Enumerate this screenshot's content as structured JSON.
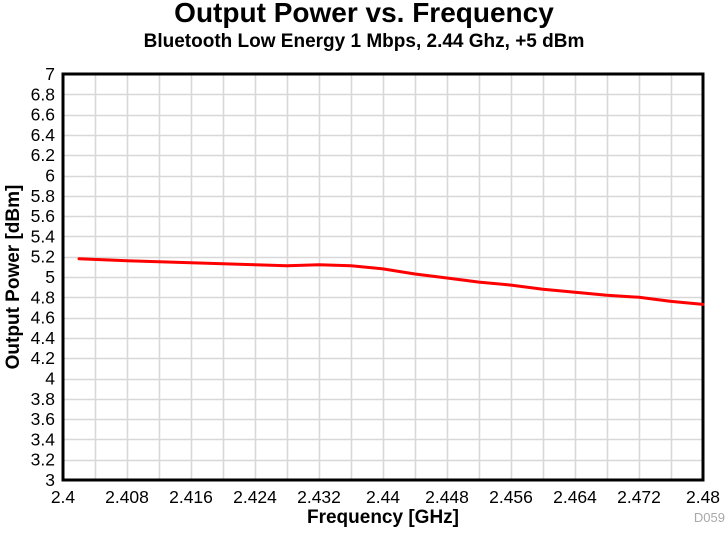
{
  "chart_data": {
    "type": "line",
    "title": "Output Power vs. Frequency",
    "subtitle": "Bluetooth Low Energy 1 Mbps, 2.44 Ghz, +5 dBm",
    "xlabel": "Frequency [GHz]",
    "ylabel": "Output Power [dBm]",
    "xlim": [
      2.4,
      2.48
    ],
    "ylim": [
      3,
      7
    ],
    "x_tick_step": 0.008,
    "x_grid_step": 0.004,
    "y_tick_step": 0.2,
    "y_grid_step": 0.2,
    "grid": true,
    "legend": null,
    "x_ticks": [
      "2.4",
      "2.408",
      "2.416",
      "2.424",
      "2.432",
      "2.44",
      "2.448",
      "2.456",
      "2.464",
      "2.472",
      "2.48"
    ],
    "y_ticks": [
      "7",
      "6.8",
      "6.6",
      "6.4",
      "6.2",
      "6",
      "5.8",
      "5.6",
      "5.4",
      "5.2",
      "5",
      "4.8",
      "4.6",
      "4.4",
      "4.2",
      "4",
      "3.8",
      "3.6",
      "3.4",
      "3.2",
      "3"
    ],
    "series": [
      {
        "name": "output-power",
        "color": "#ff0000",
        "points": [
          [
            2.402,
            5.18
          ],
          [
            2.408,
            5.16
          ],
          [
            2.412,
            5.15
          ],
          [
            2.416,
            5.14
          ],
          [
            2.42,
            5.13
          ],
          [
            2.424,
            5.12
          ],
          [
            2.428,
            5.11
          ],
          [
            2.432,
            5.12
          ],
          [
            2.436,
            5.11
          ],
          [
            2.44,
            5.08
          ],
          [
            2.444,
            5.03
          ],
          [
            2.448,
            4.99
          ],
          [
            2.452,
            4.95
          ],
          [
            2.456,
            4.92
          ],
          [
            2.46,
            4.88
          ],
          [
            2.464,
            4.85
          ],
          [
            2.468,
            4.82
          ],
          [
            2.472,
            4.8
          ],
          [
            2.476,
            4.76
          ],
          [
            2.48,
            4.73
          ]
        ]
      }
    ],
    "watermark": "D059",
    "colors": {
      "line": "#ff0000",
      "grid": "#d8d8d8",
      "axis": "#000000",
      "text": "#000000",
      "watermark": "#a8a8a8"
    }
  }
}
